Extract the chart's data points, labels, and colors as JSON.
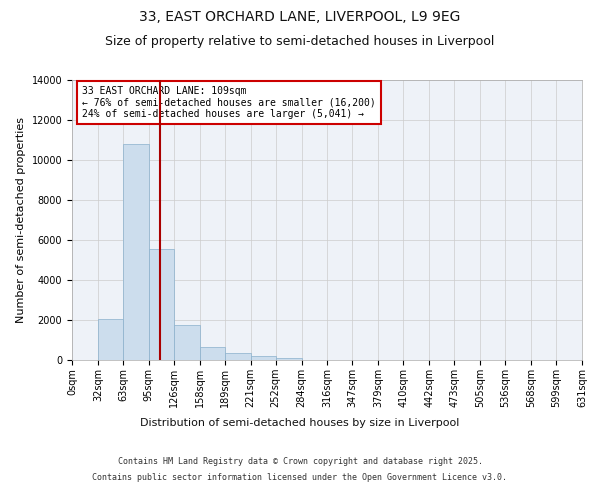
{
  "title_line1": "33, EAST ORCHARD LANE, LIVERPOOL, L9 9EG",
  "title_line2": "Size of property relative to semi-detached houses in Liverpool",
  "xlabel": "Distribution of semi-detached houses by size in Liverpool",
  "ylabel": "Number of semi-detached properties",
  "bar_color": "#ccdded",
  "bar_edge_color": "#8ab0cc",
  "grid_color": "#cccccc",
  "bg_color": "#eef2f8",
  "annotation_box_color": "#cc0000",
  "annotation_text": "33 EAST ORCHARD LANE: 109sqm\n← 76% of semi-detached houses are smaller (16,200)\n24% of semi-detached houses are larger (5,041) →",
  "red_line_x": 109,
  "bin_edges": [
    0,
    32,
    63,
    95,
    126,
    158,
    189,
    221,
    252,
    284,
    316,
    347,
    379,
    410,
    442,
    473,
    505,
    536,
    568,
    599,
    631
  ],
  "bin_counts": [
    0,
    2050,
    10800,
    5550,
    1750,
    650,
    330,
    180,
    120,
    0,
    0,
    0,
    0,
    0,
    0,
    0,
    0,
    0,
    0,
    0
  ],
  "ylim": [
    0,
    14000
  ],
  "yticks": [
    0,
    2000,
    4000,
    6000,
    8000,
    10000,
    12000,
    14000
  ],
  "footer_line1": "Contains HM Land Registry data © Crown copyright and database right 2025.",
  "footer_line2": "Contains public sector information licensed under the Open Government Licence v3.0.",
  "title_fontsize": 10,
  "subtitle_fontsize": 9,
  "axis_label_fontsize": 8,
  "tick_fontsize": 7,
  "annotation_fontsize": 7,
  "footer_fontsize": 6
}
